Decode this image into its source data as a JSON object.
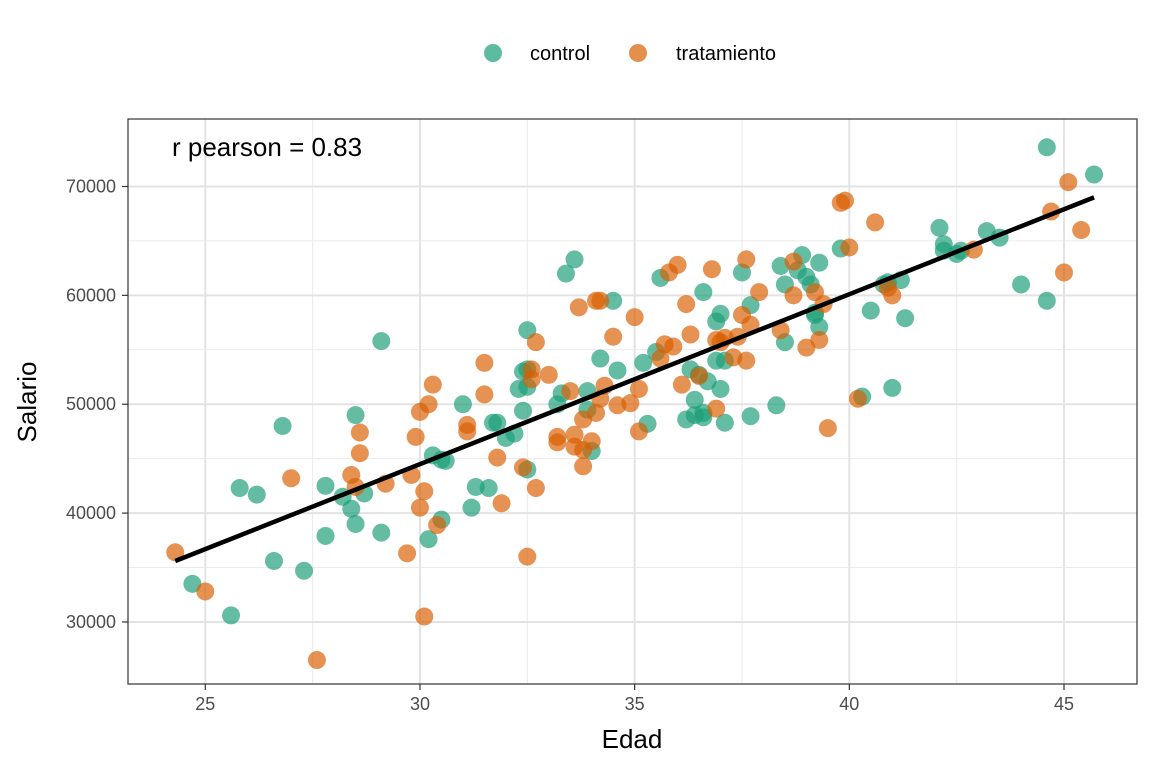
{
  "chart_data": {
    "type": "scatter",
    "xlabel": "Edad",
    "ylabel": "Salario",
    "xlim": [
      23.2,
      46.7
    ],
    "ylim": [
      24300,
      76200
    ],
    "xticks": [
      25,
      30,
      35,
      40,
      45
    ],
    "yticks": [
      30000,
      40000,
      50000,
      60000,
      70000
    ],
    "xtick_labels": [
      "25",
      "30",
      "35",
      "40",
      "45"
    ],
    "ytick_labels": [
      "30000",
      "40000",
      "50000",
      "60000",
      "70000"
    ],
    "grid": true,
    "legend": {
      "position": "top",
      "entries": [
        "control",
        "tratamiento"
      ]
    },
    "annotation": "r pearson = 0.83",
    "colors": {
      "control": "#1b9e77",
      "tratamiento": "#d95f02",
      "fit_line": "#000000"
    },
    "fit_line": {
      "x": [
        24.3,
        45.7
      ],
      "y": [
        35600,
        69000
      ]
    },
    "series": [
      {
        "name": "control",
        "points": [
          [
            24.7,
            33500
          ],
          [
            25.6,
            30600
          ],
          [
            25.8,
            42300
          ],
          [
            26.2,
            41700
          ],
          [
            26.6,
            35600
          ],
          [
            26.8,
            48000
          ],
          [
            27.3,
            34700
          ],
          [
            27.8,
            37900
          ],
          [
            27.8,
            42500
          ],
          [
            28.2,
            41500
          ],
          [
            28.4,
            40400
          ],
          [
            28.5,
            39000
          ],
          [
            28.5,
            49000
          ],
          [
            28.7,
            41800
          ],
          [
            29.1,
            38200
          ],
          [
            29.1,
            55800
          ],
          [
            30.2,
            37600
          ],
          [
            30.3,
            45300
          ],
          [
            30.5,
            44900
          ],
          [
            30.5,
            39400
          ],
          [
            30.6,
            44800
          ],
          [
            31.0,
            50000
          ],
          [
            31.2,
            40500
          ],
          [
            31.3,
            42400
          ],
          [
            31.6,
            42300
          ],
          [
            31.7,
            48300
          ],
          [
            31.8,
            48300
          ],
          [
            32.0,
            46900
          ],
          [
            32.2,
            47300
          ],
          [
            32.3,
            51400
          ],
          [
            32.4,
            49400
          ],
          [
            32.4,
            53000
          ],
          [
            32.5,
            53200
          ],
          [
            32.5,
            44000
          ],
          [
            32.5,
            51600
          ],
          [
            32.5,
            56800
          ],
          [
            33.2,
            50000
          ],
          [
            33.3,
            51000
          ],
          [
            33.4,
            62000
          ],
          [
            33.6,
            63300
          ],
          [
            33.9,
            49500
          ],
          [
            33.9,
            51200
          ],
          [
            34.0,
            45700
          ],
          [
            34.2,
            54200
          ],
          [
            34.5,
            59500
          ],
          [
            34.6,
            53100
          ],
          [
            35.2,
            53800
          ],
          [
            35.3,
            48200
          ],
          [
            35.5,
            54800
          ],
          [
            35.6,
            61600
          ],
          [
            36.2,
            48600
          ],
          [
            36.3,
            53200
          ],
          [
            36.4,
            49000
          ],
          [
            36.4,
            50400
          ],
          [
            36.5,
            52700
          ],
          [
            36.6,
            48800
          ],
          [
            36.6,
            49200
          ],
          [
            36.6,
            60300
          ],
          [
            36.7,
            52100
          ],
          [
            36.9,
            54000
          ],
          [
            36.9,
            57600
          ],
          [
            37.0,
            58300
          ],
          [
            37.0,
            51400
          ],
          [
            37.1,
            54000
          ],
          [
            37.1,
            48300
          ],
          [
            37.5,
            62100
          ],
          [
            37.7,
            59100
          ],
          [
            37.7,
            48900
          ],
          [
            38.3,
            49900
          ],
          [
            38.4,
            62700
          ],
          [
            38.5,
            55700
          ],
          [
            38.5,
            61000
          ],
          [
            38.8,
            62300
          ],
          [
            38.9,
            63700
          ],
          [
            39.0,
            61700
          ],
          [
            39.1,
            61000
          ],
          [
            39.2,
            58400
          ],
          [
            39.2,
            58200
          ],
          [
            39.3,
            63000
          ],
          [
            39.3,
            57100
          ],
          [
            39.8,
            64300
          ],
          [
            40.3,
            50700
          ],
          [
            40.5,
            58600
          ],
          [
            40.8,
            61000
          ],
          [
            40.9,
            61200
          ],
          [
            41.0,
            51500
          ],
          [
            41.2,
            61400
          ],
          [
            41.3,
            57900
          ],
          [
            42.1,
            66200
          ],
          [
            42.2,
            64100
          ],
          [
            42.2,
            64700
          ],
          [
            42.5,
            63800
          ],
          [
            42.6,
            64100
          ],
          [
            43.2,
            65900
          ],
          [
            43.5,
            65300
          ],
          [
            44.0,
            61000
          ],
          [
            44.6,
            59500
          ],
          [
            44.6,
            73600
          ],
          [
            45.7,
            71100
          ]
        ]
      },
      {
        "name": "tratamiento",
        "points": [
          [
            24.3,
            36400
          ],
          [
            25.0,
            32800
          ],
          [
            27.0,
            43200
          ],
          [
            27.6,
            26500
          ],
          [
            28.4,
            43500
          ],
          [
            28.5,
            42400
          ],
          [
            28.6,
            45500
          ],
          [
            28.6,
            47400
          ],
          [
            29.2,
            42700
          ],
          [
            29.7,
            36300
          ],
          [
            29.8,
            43500
          ],
          [
            29.9,
            47000
          ],
          [
            30.0,
            49300
          ],
          [
            30.0,
            40500
          ],
          [
            30.1,
            42000
          ],
          [
            30.1,
            30500
          ],
          [
            30.2,
            50000
          ],
          [
            30.3,
            51800
          ],
          [
            30.4,
            38900
          ],
          [
            31.1,
            47500
          ],
          [
            31.1,
            48100
          ],
          [
            31.5,
            53800
          ],
          [
            31.5,
            50900
          ],
          [
            31.8,
            45100
          ],
          [
            31.9,
            40900
          ],
          [
            32.4,
            44200
          ],
          [
            32.5,
            36000
          ],
          [
            32.6,
            53200
          ],
          [
            32.6,
            52300
          ],
          [
            32.7,
            42300
          ],
          [
            32.7,
            55700
          ],
          [
            33.0,
            52700
          ],
          [
            33.2,
            47000
          ],
          [
            33.2,
            46500
          ],
          [
            33.5,
            51200
          ],
          [
            33.6,
            46100
          ],
          [
            33.6,
            47200
          ],
          [
            33.7,
            58900
          ],
          [
            33.8,
            48600
          ],
          [
            33.8,
            45800
          ],
          [
            33.8,
            44300
          ],
          [
            34.0,
            46600
          ],
          [
            34.1,
            59500
          ],
          [
            34.1,
            49200
          ],
          [
            34.2,
            50500
          ],
          [
            34.2,
            59500
          ],
          [
            34.3,
            51700
          ],
          [
            34.5,
            56200
          ],
          [
            34.6,
            49900
          ],
          [
            34.9,
            50100
          ],
          [
            35.0,
            58000
          ],
          [
            35.1,
            51400
          ],
          [
            35.1,
            47500
          ],
          [
            35.6,
            54200
          ],
          [
            35.7,
            55500
          ],
          [
            35.8,
            62100
          ],
          [
            35.9,
            55300
          ],
          [
            36.0,
            62800
          ],
          [
            36.1,
            51800
          ],
          [
            36.2,
            59200
          ],
          [
            36.3,
            56400
          ],
          [
            36.5,
            52600
          ],
          [
            36.8,
            62400
          ],
          [
            36.9,
            49600
          ],
          [
            36.9,
            55900
          ],
          [
            37.0,
            55700
          ],
          [
            37.1,
            56100
          ],
          [
            37.3,
            54300
          ],
          [
            37.4,
            56200
          ],
          [
            37.5,
            58200
          ],
          [
            37.6,
            54000
          ],
          [
            37.6,
            63300
          ],
          [
            37.7,
            57300
          ],
          [
            37.9,
            60300
          ],
          [
            38.4,
            56800
          ],
          [
            38.7,
            60000
          ],
          [
            38.7,
            63100
          ],
          [
            39.0,
            55200
          ],
          [
            39.2,
            60300
          ],
          [
            39.3,
            55900
          ],
          [
            39.4,
            59200
          ],
          [
            39.5,
            47800
          ],
          [
            39.8,
            68500
          ],
          [
            39.9,
            68700
          ],
          [
            40.0,
            64400
          ],
          [
            40.2,
            50500
          ],
          [
            40.6,
            66700
          ],
          [
            40.9,
            60700
          ],
          [
            41.0,
            60000
          ],
          [
            42.9,
            64200
          ],
          [
            44.7,
            67700
          ],
          [
            45.0,
            62100
          ],
          [
            45.1,
            70400
          ],
          [
            45.4,
            66000
          ]
        ]
      }
    ]
  }
}
